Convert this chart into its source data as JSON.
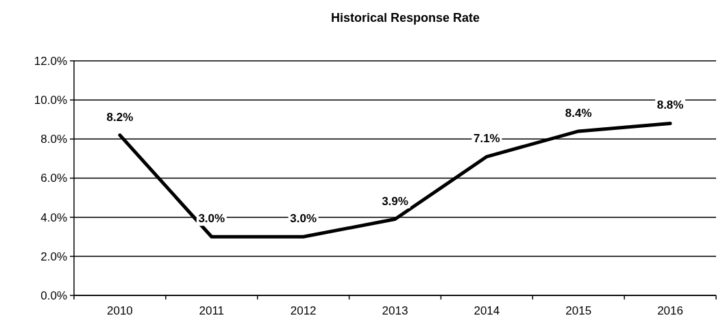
{
  "chart_data": {
    "type": "line",
    "title": "Historical Response Rate",
    "categories": [
      "2010",
      "2011",
      "2012",
      "2013",
      "2014",
      "2015",
      "2016"
    ],
    "series": [
      {
        "color": "#000000",
        "values": [
          8.2,
          3.0,
          3.0,
          3.9,
          7.1,
          8.4,
          8.8
        ],
        "value_labels": [
          "8.2%",
          "3.0%",
          "3.0%",
          "3.9%",
          "7.1%",
          "8.4%",
          "8.8%"
        ]
      }
    ],
    "ylim": [
      0,
      12
    ],
    "yticks": [
      {
        "value": 0,
        "label": "0.0%"
      },
      {
        "value": 2,
        "label": "2.0%"
      },
      {
        "value": 4,
        "label": "4.0%"
      },
      {
        "value": 6,
        "label": "6.0%"
      },
      {
        "value": 8,
        "label": "8.0%"
      },
      {
        "value": 10,
        "label": "10.0%"
      },
      {
        "value": 12,
        "label": "12.0%"
      }
    ],
    "grid": "y",
    "marker": "none",
    "line_style": "solid"
  }
}
